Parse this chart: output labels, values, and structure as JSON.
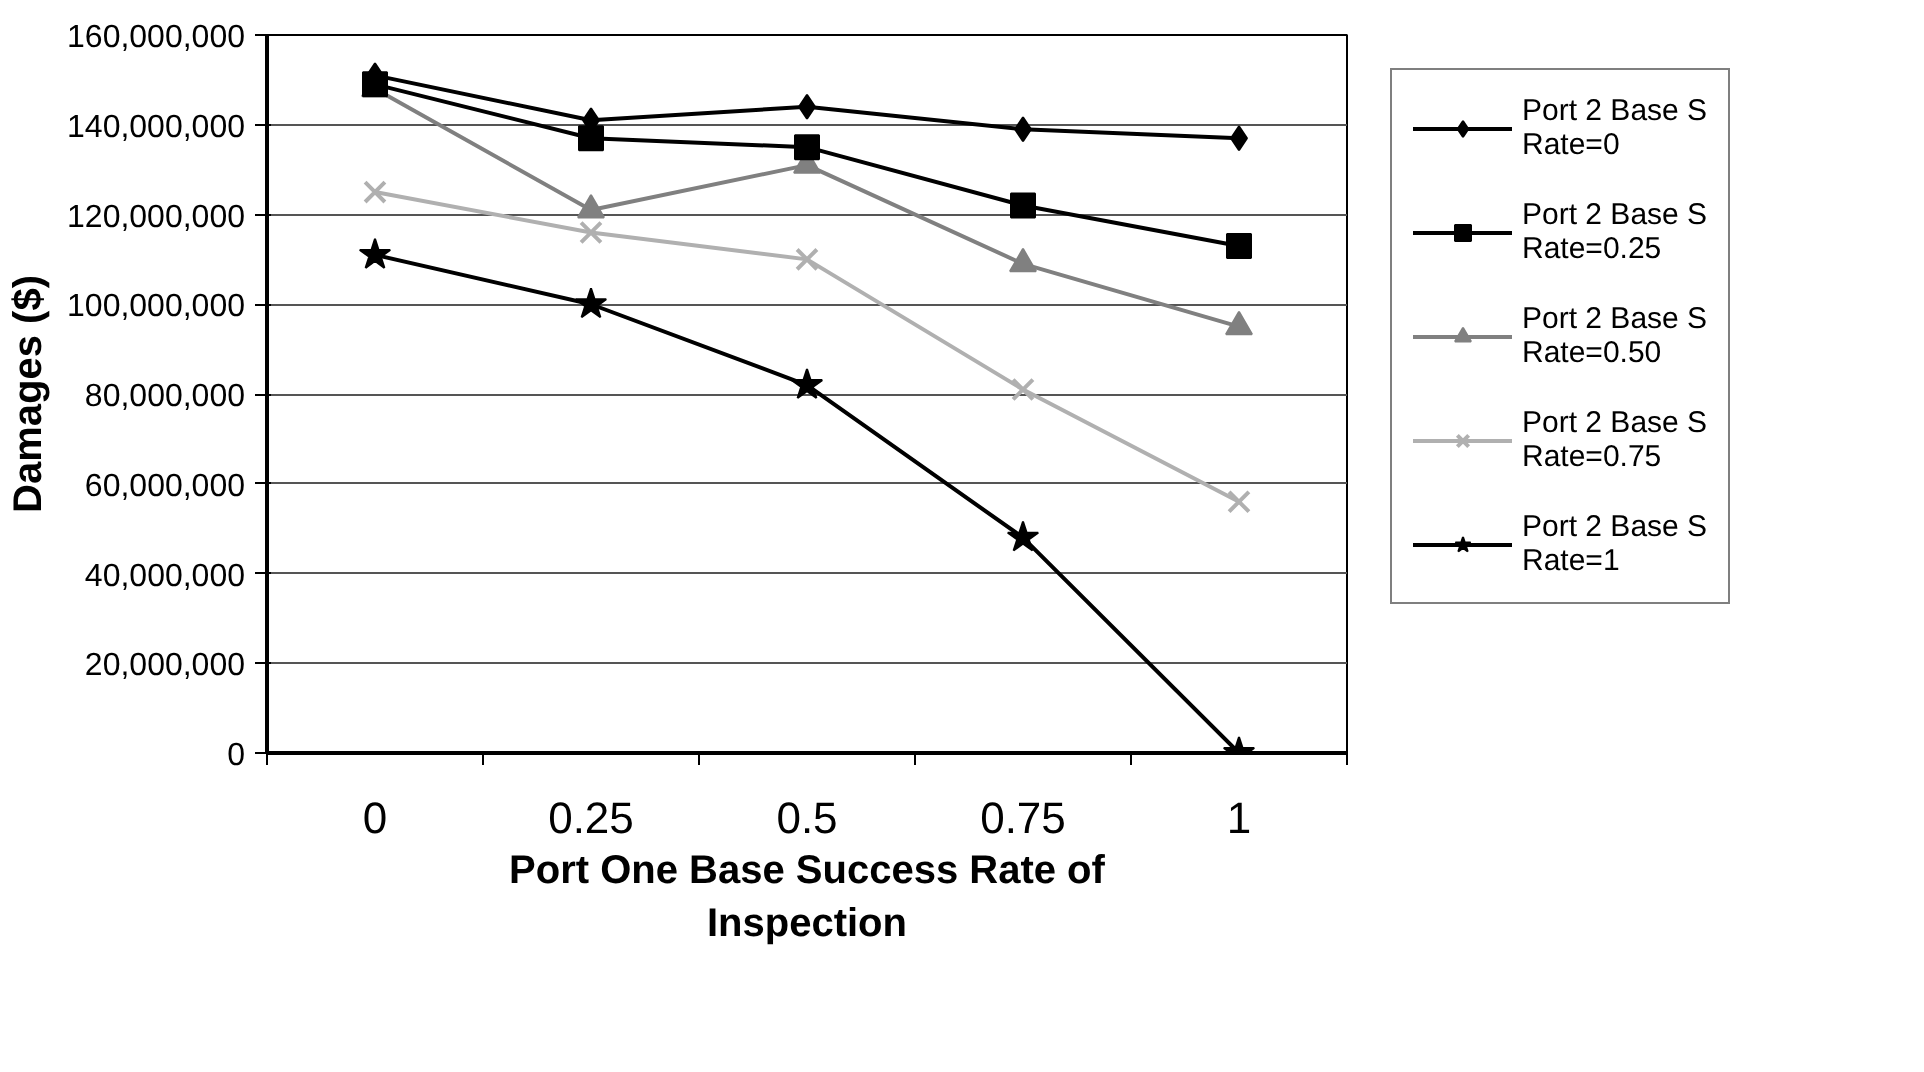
{
  "chart_data": {
    "type": "line",
    "xlabel": "Port One Base Success Rate of Inspection",
    "ylabel": "Damages ($)",
    "categories": [
      "0",
      "0.25",
      "0.5",
      "0.75",
      "1"
    ],
    "ylim": [
      0,
      160000000
    ],
    "yticks": [
      {
        "value": 0,
        "label": "0"
      },
      {
        "value": 20000000,
        "label": "20,000,000"
      },
      {
        "value": 40000000,
        "label": "40,000,000"
      },
      {
        "value": 60000000,
        "label": "60,000,000"
      },
      {
        "value": 80000000,
        "label": "80,000,000"
      },
      {
        "value": 100000000,
        "label": "100,000,000"
      },
      {
        "value": 120000000,
        "label": "120,000,000"
      },
      {
        "value": 140000000,
        "label": "140,000,000"
      },
      {
        "value": 160000000,
        "label": "160,000,000"
      }
    ],
    "grid": "y",
    "legend": "right",
    "series": [
      {
        "name": "Port 2 Base S Rate=0",
        "color": "#000000",
        "marker": "diamond",
        "values": [
          151000000,
          141000000,
          144000000,
          139000000,
          137000000
        ]
      },
      {
        "name": "Port 2 Base S Rate=0.25",
        "color": "#000000",
        "marker": "square",
        "values": [
          149000000,
          137000000,
          135000000,
          122000000,
          113000000
        ]
      },
      {
        "name": "Port 2 Base S Rate=0.50",
        "color": "#808080",
        "marker": "triangle",
        "values": [
          148000000,
          121000000,
          131000000,
          109000000,
          95000000
        ]
      },
      {
        "name": "Port 2 Base S Rate=0.75",
        "color": "#b0b0b0",
        "marker": "cross",
        "values": [
          125000000,
          116000000,
          110000000,
          81000000,
          56000000
        ]
      },
      {
        "name": "Port 2 Base S Rate=1",
        "color": "#000000",
        "marker": "star",
        "values": [
          111000000,
          100000000,
          82000000,
          48000000,
          0
        ]
      }
    ]
  }
}
